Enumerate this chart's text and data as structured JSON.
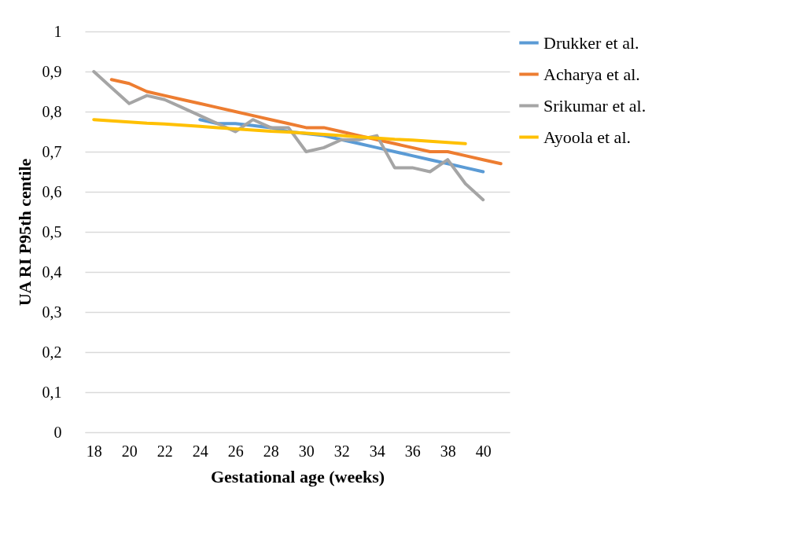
{
  "chart_data": {
    "type": "line",
    "xlabel": "Gestational age (weeks)",
    "ylabel": "UA RI P95th centile",
    "categories": [
      "18",
      null,
      "20",
      null,
      "22",
      null,
      "24",
      null,
      "26",
      null,
      "28",
      null,
      "30",
      null,
      "32",
      null,
      "34",
      null,
      "36",
      null,
      "38",
      null,
      "40",
      null
    ],
    "series": [
      {
        "name": "Drukker et al.",
        "color": "#5b9bd5",
        "values": [
          null,
          null,
          null,
          null,
          null,
          null,
          0.78,
          0.77,
          0.77,
          0.765,
          0.76,
          0.75,
          0.745,
          0.74,
          0.73,
          0.72,
          0.71,
          0.7,
          0.69,
          0.68,
          0.67,
          0.66,
          0.65,
          null
        ]
      },
      {
        "name": "Acharya et al.",
        "color": "#ed7d31",
        "values": [
          null,
          0.88,
          0.87,
          0.85,
          0.84,
          0.83,
          0.82,
          0.81,
          0.8,
          0.79,
          0.78,
          0.77,
          0.76,
          0.76,
          0.75,
          0.74,
          0.73,
          0.72,
          0.71,
          0.7,
          0.7,
          0.69,
          0.68,
          0.67
        ]
      },
      {
        "name": "Srikumar et al.",
        "color": "#a5a5a5",
        "values": [
          0.9,
          0.86,
          0.82,
          0.84,
          0.83,
          0.81,
          0.79,
          0.77,
          0.75,
          0.78,
          0.76,
          0.76,
          0.7,
          0.71,
          0.73,
          0.73,
          0.74,
          0.66,
          0.66,
          0.65,
          0.68,
          0.62,
          0.58,
          null
        ]
      },
      {
        "name": "Ayoola et al.",
        "color": "#ffc000",
        "values": [
          0.78,
          0.777,
          0.774,
          0.771,
          0.769,
          0.766,
          0.763,
          0.76,
          0.757,
          0.754,
          0.751,
          0.749,
          0.746,
          0.743,
          0.74,
          0.737,
          0.734,
          0.731,
          0.729,
          0.726,
          0.723,
          0.72,
          null,
          null
        ]
      }
    ],
    "ylim": [
      0,
      1
    ],
    "yticks": [
      0,
      {
        "value": 0.1,
        "label": "0,1"
      },
      {
        "value": 0.2,
        "label": "0,2"
      },
      {
        "value": 0.3,
        "label": "0,3"
      },
      {
        "value": 0.4,
        "label": "0,4"
      },
      {
        "value": 0.5,
        "label": "0,5"
      },
      {
        "value": 0.6,
        "label": "0,6"
      },
      {
        "value": 0.7,
        "label": "0,7"
      },
      {
        "value": 0.8,
        "label": "0,8"
      },
      {
        "value": 0.9,
        "label": "0,9"
      },
      1
    ],
    "grid": "y",
    "legend": "right",
    "marker": "none",
    "line_style": "solid"
  }
}
